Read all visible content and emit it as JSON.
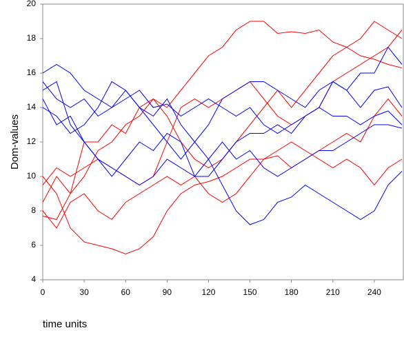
{
  "chart_data": {
    "type": "line",
    "y_label": "Dom-values",
    "x_label": "time units",
    "x": [
      0,
      10,
      20,
      30,
      40,
      50,
      60,
      70,
      80,
      90,
      100,
      110,
      120,
      130,
      140,
      150,
      160,
      170,
      180,
      190,
      200,
      210,
      220,
      230,
      240,
      250,
      260
    ],
    "xlim": [
      0,
      261
    ],
    "xticks": [
      0,
      30,
      60,
      90,
      120,
      150,
      180,
      210,
      240
    ],
    "ylim": [
      4,
      20
    ],
    "yticks": [
      4,
      6,
      8,
      10,
      12,
      14,
      16,
      18,
      20
    ],
    "grid": false,
    "series": [
      {
        "color": "#ff0000",
        "values": [
          8.5,
          10,
          9,
          10,
          11.5,
          12,
          13,
          13.5,
          14.5,
          14,
          15,
          16,
          17,
          17.5,
          18.5,
          19,
          19,
          18.3,
          18.4,
          18.3,
          18.5,
          17.8,
          17.5,
          17,
          16.8,
          16.5,
          16.3
        ]
      },
      {
        "color": "#ff0000",
        "values": [
          7.7,
          7.5,
          9,
          12,
          12,
          13,
          12.5,
          14,
          14.5,
          13.5,
          12,
          11,
          10.5,
          11,
          12,
          13,
          14,
          15,
          14,
          15,
          16,
          17,
          17.5,
          18,
          19,
          18.5,
          18
        ]
      },
      {
        "color": "#ff0000",
        "values": [
          10,
          9,
          7,
          6.2,
          6,
          5.8,
          5.5,
          5.8,
          6.5,
          8,
          9,
          9.5,
          9.7,
          10,
          10.5,
          11,
          11,
          11.2,
          10.5,
          11,
          11.5,
          12,
          12.5,
          12,
          13.5,
          14.5,
          13.5
        ]
      },
      {
        "color": "#ff0000",
        "values": [
          8,
          7,
          8.5,
          9,
          8,
          7.5,
          8.5,
          9,
          9.5,
          10,
          9.5,
          10,
          9,
          8.5,
          9,
          10,
          11,
          11.5,
          12,
          11.5,
          11,
          10.5,
          11,
          10.5,
          9.5,
          10.5,
          11
        ]
      },
      {
        "color": "#ff0000",
        "values": [
          9.5,
          10.5,
          10,
          10.5,
          11,
          10.5,
          10,
          9.5,
          10,
          12,
          14,
          14.5,
          14,
          14.5,
          15,
          15.5,
          14.5,
          13.5,
          13,
          13.5,
          14,
          15.5,
          16,
          16.5,
          17,
          17.5,
          18.5
        ]
      },
      {
        "color": "#0000ff",
        "values": [
          16,
          16.5,
          16,
          15,
          14.5,
          14,
          15,
          14,
          13.5,
          14.5,
          13,
          12,
          11,
          9.5,
          8,
          7.2,
          7.5,
          8.5,
          8.8,
          9.5,
          9,
          8.5,
          8,
          7.5,
          8,
          9.5,
          10.3
        ]
      },
      {
        "color": "#0000ff",
        "values": [
          15,
          15.5,
          13,
          12,
          11,
          10.5,
          10,
          9.5,
          10,
          11,
          10.5,
          10,
          11,
          12,
          11,
          11.5,
          10.5,
          10,
          10.5,
          11,
          11.5,
          11.5,
          12,
          12.5,
          13,
          13,
          12.8
        ]
      },
      {
        "color": "#0000ff",
        "values": [
          14,
          13.5,
          12.5,
          13,
          14,
          15.5,
          15,
          14,
          13,
          12,
          11,
          12,
          13,
          14.5,
          15,
          15.5,
          15.5,
          15,
          14.5,
          14,
          15,
          15.5,
          15,
          14,
          15,
          15.2,
          14
        ]
      },
      {
        "color": "#0000ff",
        "values": [
          15.5,
          14.5,
          14,
          14.5,
          13.5,
          14,
          14.5,
          15,
          14,
          14.2,
          13.5,
          14,
          14.5,
          14,
          13.5,
          14,
          13,
          12.5,
          13,
          13.5,
          14,
          15.5,
          15,
          16,
          16,
          17.5,
          16.5
        ]
      },
      {
        "color": "#0000ff",
        "values": [
          14.5,
          13,
          13.5,
          12,
          11,
          10,
          11,
          12,
          11.5,
          12.5,
          12,
          10,
          10,
          11,
          12,
          12.5,
          12.5,
          13,
          12.5,
          13.5,
          14,
          13.5,
          13.5,
          13,
          13.5,
          13.8,
          13
        ]
      }
    ]
  }
}
